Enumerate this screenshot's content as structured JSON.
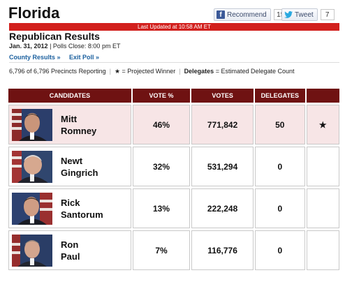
{
  "page": {
    "state": "Florida",
    "last_updated": "Last Updated at 10:58 AM ET",
    "subtitle": "Republican Results",
    "date": "Jan. 31, 2012",
    "polls_close": "Polls Close: 8:00 pm ET",
    "links": [
      "County Results »",
      "Exit Poll »"
    ],
    "precincts": "6,796 of 6,796 Precincts Reporting",
    "legend_star": "★ = Projected Winner",
    "legend_delegates_label": "Delegates",
    "legend_delegates_text": "= Estimated Delegate Count"
  },
  "social": {
    "fb_label": "Recommend",
    "fb_count": "15",
    "tw_label": "Tweet",
    "tw_count": "7"
  },
  "table": {
    "headers": [
      "CANDIDATES",
      "VOTE %",
      "VOTES",
      "DELEGATES",
      ""
    ],
    "rows": [
      {
        "first": "Mitt",
        "last": "Romney",
        "pct": "46%",
        "votes": "771,842",
        "delegates": "50",
        "star": "★"
      },
      {
        "first": "Newt",
        "last": "Gingrich",
        "pct": "32%",
        "votes": "531,294",
        "delegates": "0",
        "star": ""
      },
      {
        "first": "Rick",
        "last": "Santorum",
        "pct": "13%",
        "votes": "222,248",
        "delegates": "0",
        "star": ""
      },
      {
        "first": "Ron",
        "last": "Paul",
        "pct": "7%",
        "votes": "116,776",
        "delegates": "0",
        "star": ""
      }
    ]
  },
  "colors": {
    "header_bg": "#6f1212",
    "updated_bar": "#d2201d",
    "winner_row": "#f7e5e6",
    "link": "#1a5f9e"
  }
}
